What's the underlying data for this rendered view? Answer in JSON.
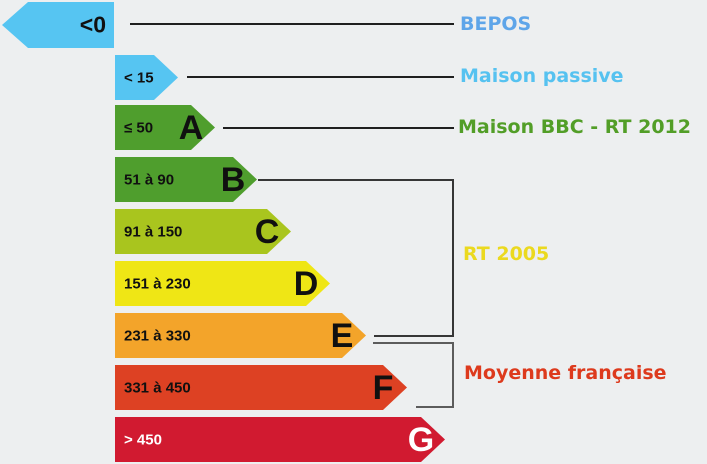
{
  "background_color": "#edeff0",
  "connector_color": "#1f1f1f",
  "bracket1_color": "#363636",
  "bracket2_color": "#5c5c5c",
  "rows": [
    {
      "range": "<0",
      "letter": "",
      "color": "#56c5f2",
      "text_color": "#101010",
      "direction": "left"
    },
    {
      "range": "< 15",
      "letter": "",
      "color": "#56c5f2",
      "text_color": "#101010",
      "direction": "right"
    },
    {
      "range": "≤ 50",
      "letter": "A",
      "color": "#4f9e2d",
      "text_color": "#101010",
      "direction": "right"
    },
    {
      "range": "51 à 90",
      "letter": "B",
      "color": "#4f9e2d",
      "text_color": "#101010",
      "direction": "right"
    },
    {
      "range": "91 à 150",
      "letter": "C",
      "color": "#a9c51e",
      "text_color": "#101010",
      "direction": "right"
    },
    {
      "range": "151 à 230",
      "letter": "D",
      "color": "#efe615",
      "text_color": "#101010",
      "direction": "right"
    },
    {
      "range": "231 à 330",
      "letter": "E",
      "color": "#f3a42a",
      "text_color": "#101010",
      "direction": "right"
    },
    {
      "range": "331 à 450",
      "letter": "F",
      "color": "#dd4123",
      "text_color": "#101010",
      "direction": "right"
    },
    {
      "range": "> 450",
      "letter": "G",
      "color": "#d11a30",
      "text_color": "#ffffff",
      "direction": "right"
    }
  ],
  "labels": [
    {
      "text": "BEPOS",
      "color": "#5ea5e9"
    },
    {
      "text": "Maison passive",
      "color": "#56c2f0"
    },
    {
      "text": "Maison BBC - RT 2012",
      "color": "#529e27"
    },
    {
      "text": "RT 2005",
      "color": "#ebd91f"
    },
    {
      "text": "Moyenne française",
      "color": "#dd3a1d"
    }
  ]
}
